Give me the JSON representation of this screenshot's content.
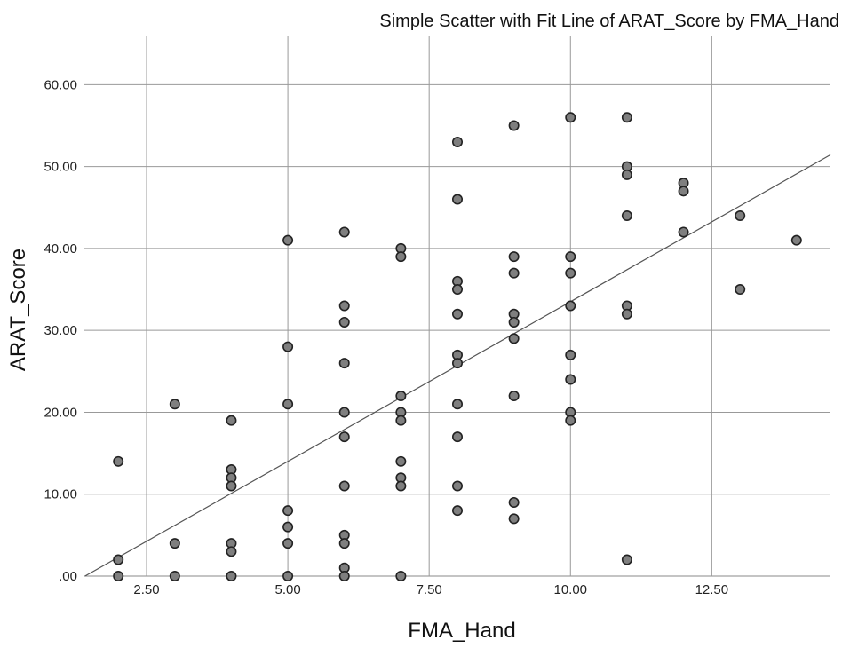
{
  "chart_data": {
    "type": "scatter",
    "title": "Simple Scatter with Fit Line of ARAT_Score by FMA_Hand",
    "xlabel": "FMA_Hand",
    "ylabel": "ARAT_Score",
    "xlim": [
      1.4,
      14.6
    ],
    "ylim": [
      0,
      66
    ],
    "x_ticks": [
      2.5,
      5,
      7.5,
      10,
      12.5
    ],
    "x_tick_labels": [
      "2.50",
      "5.00",
      "7.50",
      "10.00",
      "12.50"
    ],
    "y_ticks": [
      0,
      10,
      20,
      30,
      40,
      50,
      60
    ],
    "y_tick_labels": [
      ".00",
      "10.00",
      "20.00",
      "30.00",
      "40.00",
      "50.00",
      "60.00"
    ],
    "grid": true,
    "point_color": "#7f7f7f",
    "point_edge_color": "#222222",
    "fit_line": {
      "slope": 3.9,
      "intercept": -5.5
    },
    "points": [
      {
        "x": 2,
        "y": 14
      },
      {
        "x": 2,
        "y": 2
      },
      {
        "x": 2,
        "y": 0
      },
      {
        "x": 3,
        "y": 21
      },
      {
        "x": 3,
        "y": 4
      },
      {
        "x": 3,
        "y": 0
      },
      {
        "x": 4,
        "y": 19
      },
      {
        "x": 4,
        "y": 13
      },
      {
        "x": 4,
        "y": 12
      },
      {
        "x": 4,
        "y": 11
      },
      {
        "x": 4,
        "y": 4
      },
      {
        "x": 4,
        "y": 3
      },
      {
        "x": 4,
        "y": 0
      },
      {
        "x": 5,
        "y": 41
      },
      {
        "x": 5,
        "y": 28
      },
      {
        "x": 5,
        "y": 21
      },
      {
        "x": 5,
        "y": 8
      },
      {
        "x": 5,
        "y": 6
      },
      {
        "x": 5,
        "y": 4
      },
      {
        "x": 5,
        "y": 0
      },
      {
        "x": 6,
        "y": 42
      },
      {
        "x": 6,
        "y": 33
      },
      {
        "x": 6,
        "y": 31
      },
      {
        "x": 6,
        "y": 26
      },
      {
        "x": 6,
        "y": 20
      },
      {
        "x": 6,
        "y": 17
      },
      {
        "x": 6,
        "y": 11
      },
      {
        "x": 6,
        "y": 5
      },
      {
        "x": 6,
        "y": 4
      },
      {
        "x": 6,
        "y": 1
      },
      {
        "x": 6,
        "y": 0
      },
      {
        "x": 7,
        "y": 40
      },
      {
        "x": 7,
        "y": 39
      },
      {
        "x": 7,
        "y": 22
      },
      {
        "x": 7,
        "y": 20
      },
      {
        "x": 7,
        "y": 19
      },
      {
        "x": 7,
        "y": 14
      },
      {
        "x": 7,
        "y": 12
      },
      {
        "x": 7,
        "y": 11
      },
      {
        "x": 7,
        "y": 0
      },
      {
        "x": 8,
        "y": 53
      },
      {
        "x": 8,
        "y": 46
      },
      {
        "x": 8,
        "y": 36
      },
      {
        "x": 8,
        "y": 35
      },
      {
        "x": 8,
        "y": 32
      },
      {
        "x": 8,
        "y": 27
      },
      {
        "x": 8,
        "y": 26
      },
      {
        "x": 8,
        "y": 21
      },
      {
        "x": 8,
        "y": 17
      },
      {
        "x": 8,
        "y": 11
      },
      {
        "x": 8,
        "y": 8
      },
      {
        "x": 9,
        "y": 55
      },
      {
        "x": 9,
        "y": 39
      },
      {
        "x": 9,
        "y": 37
      },
      {
        "x": 9,
        "y": 32
      },
      {
        "x": 9,
        "y": 31
      },
      {
        "x": 9,
        "y": 29
      },
      {
        "x": 9,
        "y": 22
      },
      {
        "x": 9,
        "y": 9
      },
      {
        "x": 9,
        "y": 7
      },
      {
        "x": 10,
        "y": 56
      },
      {
        "x": 10,
        "y": 39
      },
      {
        "x": 10,
        "y": 37
      },
      {
        "x": 10,
        "y": 33
      },
      {
        "x": 10,
        "y": 27
      },
      {
        "x": 10,
        "y": 24
      },
      {
        "x": 10,
        "y": 20
      },
      {
        "x": 10,
        "y": 19
      },
      {
        "x": 11,
        "y": 56
      },
      {
        "x": 11,
        "y": 50
      },
      {
        "x": 11,
        "y": 49
      },
      {
        "x": 11,
        "y": 44
      },
      {
        "x": 11,
        "y": 33
      },
      {
        "x": 11,
        "y": 32
      },
      {
        "x": 11,
        "y": 2
      },
      {
        "x": 12,
        "y": 48
      },
      {
        "x": 12,
        "y": 47
      },
      {
        "x": 12,
        "y": 42
      },
      {
        "x": 13,
        "y": 44
      },
      {
        "x": 13,
        "y": 35
      },
      {
        "x": 14,
        "y": 41
      }
    ]
  }
}
